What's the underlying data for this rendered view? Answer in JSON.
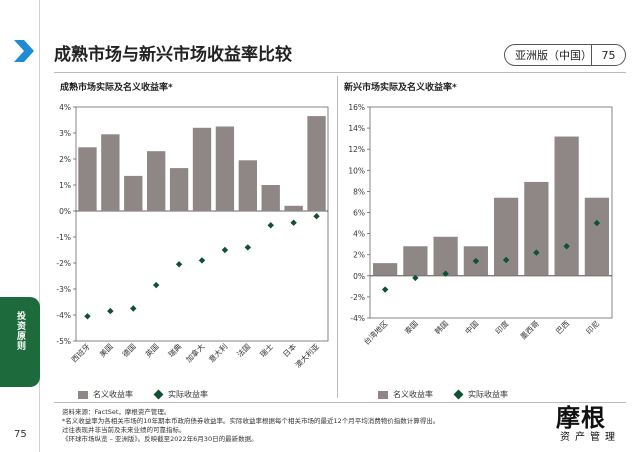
{
  "header": {
    "title": "成熟市场与新兴市场收益率比较",
    "edition": "亚洲版（中国）",
    "page_number": "75"
  },
  "sidebar": {
    "section_label": "投资原则",
    "page_number": "75"
  },
  "colors": {
    "bar": "#8f8686",
    "marker": "#0f5132",
    "accent_blue": "#1f8bd6",
    "tab_green": "#1d6b3d"
  },
  "chart_data": [
    {
      "type": "bar",
      "title": "成熟市场实际及名义收益率*",
      "categories": [
        "西班牙",
        "美国",
        "德国",
        "英国",
        "瑞典",
        "加拿大",
        "意大利",
        "法国",
        "瑞士",
        "日本",
        "澳大利亚"
      ],
      "series": [
        {
          "name": "名义收益率",
          "kind": "bar",
          "values": [
            2.45,
            2.95,
            1.35,
            2.3,
            1.65,
            3.2,
            3.25,
            1.95,
            1.0,
            0.2,
            3.65
          ]
        },
        {
          "name": "实际收益率",
          "kind": "marker",
          "values": [
            -4.05,
            -3.85,
            -3.75,
            -2.85,
            -2.05,
            -1.9,
            -1.5,
            -1.4,
            -0.55,
            -0.45,
            -0.2
          ]
        }
      ],
      "ylim": [
        -5,
        4
      ],
      "yticks": [
        "-5%",
        "-4%",
        "-3%",
        "-2%",
        "-1%",
        "0%",
        "1%",
        "2%",
        "3%",
        "4%"
      ],
      "legend": [
        "名义收益率",
        "实际收益率"
      ]
    },
    {
      "type": "bar",
      "title": "新兴市场实际及名义收益率*",
      "categories": [
        "台湾地区",
        "泰国",
        "韩国",
        "中国",
        "印度",
        "墨西哥",
        "巴西",
        "印尼"
      ],
      "series": [
        {
          "name": "名义收益率",
          "kind": "bar",
          "values": [
            1.2,
            2.8,
            3.7,
            2.8,
            7.4,
            8.9,
            13.2,
            7.4
          ]
        },
        {
          "name": "实际收益率",
          "kind": "marker",
          "values": [
            -1.3,
            -0.2,
            0.2,
            1.4,
            1.5,
            2.2,
            2.8,
            5.0
          ]
        }
      ],
      "ylim": [
        -4,
        16
      ],
      "yticks": [
        "-4%",
        "-2%",
        "0%",
        "2%",
        "4%",
        "6%",
        "8%",
        "10%",
        "12%",
        "14%",
        "16%"
      ],
      "legend": [
        "名义收益率",
        "实际收益率"
      ]
    }
  ],
  "footnotes": [
    "资料来源：FactSet，摩根资产管理。",
    "*名义收益率为各相关市场的10年期本币政府债券收益率。实际收益率根据每个相关市场的最近12个月平均消费物价指数计算得出。",
    "过往表现并非当前及未来业绩的可靠指标。",
    "《环球市场纵览 – 亚洲版》。反映截至2022年6月30日的最新数据。"
  ],
  "logo": {
    "main": "摩根",
    "sub": "资产管理"
  }
}
